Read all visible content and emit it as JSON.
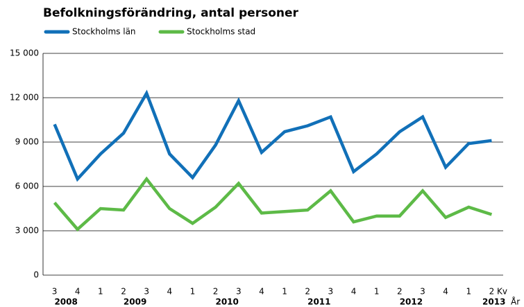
{
  "chart_data": {
    "type": "line",
    "title": "Befolkningsförändring, antal personer",
    "categories": [
      "3",
      "4",
      "1",
      "2",
      "3",
      "4",
      "1",
      "2",
      "3",
      "4",
      "1",
      "2",
      "3",
      "4",
      "1",
      "2",
      "3",
      "4",
      "1",
      "2"
    ],
    "years": [
      "2008",
      "2009",
      "2010",
      "2011",
      "2012",
      "2013"
    ],
    "x_label": "Kv",
    "year_label": "År",
    "series": [
      {
        "name": "Stockholms län",
        "color": "#1170b8",
        "values": [
          10200,
          6500,
          8200,
          9600,
          12300,
          8200,
          6600,
          8800,
          11800,
          8300,
          9700,
          10100,
          10700,
          7000,
          8200,
          9700,
          10700,
          7300,
          8900,
          9100
        ]
      },
      {
        "name": "Stockholms stad",
        "color": "#5dba47",
        "values": [
          4900,
          3100,
          4500,
          4400,
          6500,
          4500,
          3500,
          4600,
          6200,
          4200,
          4300,
          4400,
          5700,
          3600,
          4000,
          4000,
          5700,
          3900,
          4600,
          4100
        ]
      }
    ],
    "ylim": [
      0,
      15000
    ],
    "yticks": [
      0,
      {
        "value": 3000,
        "label": "3 000"
      },
      {
        "value": 6000,
        "label": "6 000"
      },
      {
        "value": 9000,
        "label": "9 000"
      },
      {
        "value": 12000,
        "label": "12 000"
      },
      {
        "value": 15000,
        "label": "15 000"
      }
    ],
    "grid": true
  }
}
